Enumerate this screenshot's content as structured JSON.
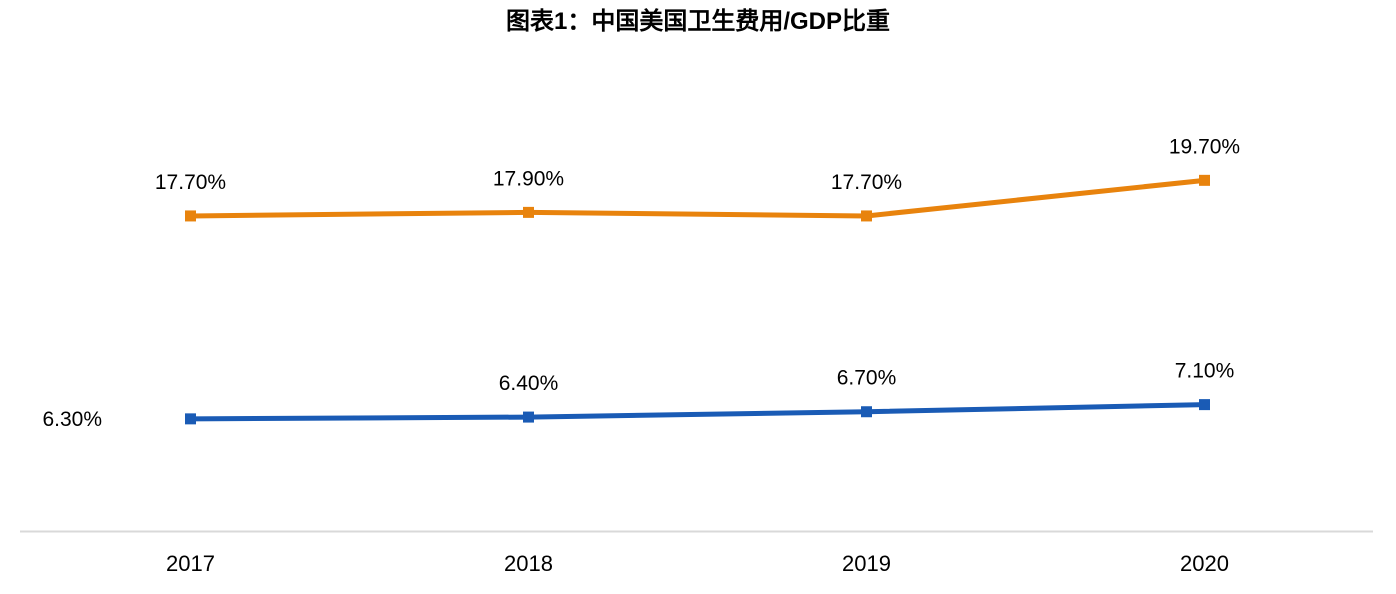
{
  "chart_data": {
    "type": "line",
    "title": "图表1：中国美国卫生费用/GDP比重",
    "categories": [
      "2017",
      "2018",
      "2019",
      "2020"
    ],
    "series": [
      {
        "name": "orange-series",
        "color": "#E8830D",
        "values": [
          17.7,
          17.9,
          17.7,
          19.7
        ],
        "labels": [
          "17.70%",
          "17.90%",
          "17.70%",
          "19.70%"
        ]
      },
      {
        "name": "blue-series",
        "color": "#1A5BB5",
        "values": [
          6.3,
          6.4,
          6.7,
          7.1
        ],
        "labels": [
          "6.30%",
          "6.40%",
          "6.70%",
          "7.10%"
        ]
      }
    ],
    "xlabel": "",
    "ylabel": "",
    "ylim": [
      0,
      22
    ],
    "grid": false,
    "legend": "none",
    "marker": "square",
    "axis_line_color": "#D9D9D9",
    "label_color": "#000000"
  }
}
